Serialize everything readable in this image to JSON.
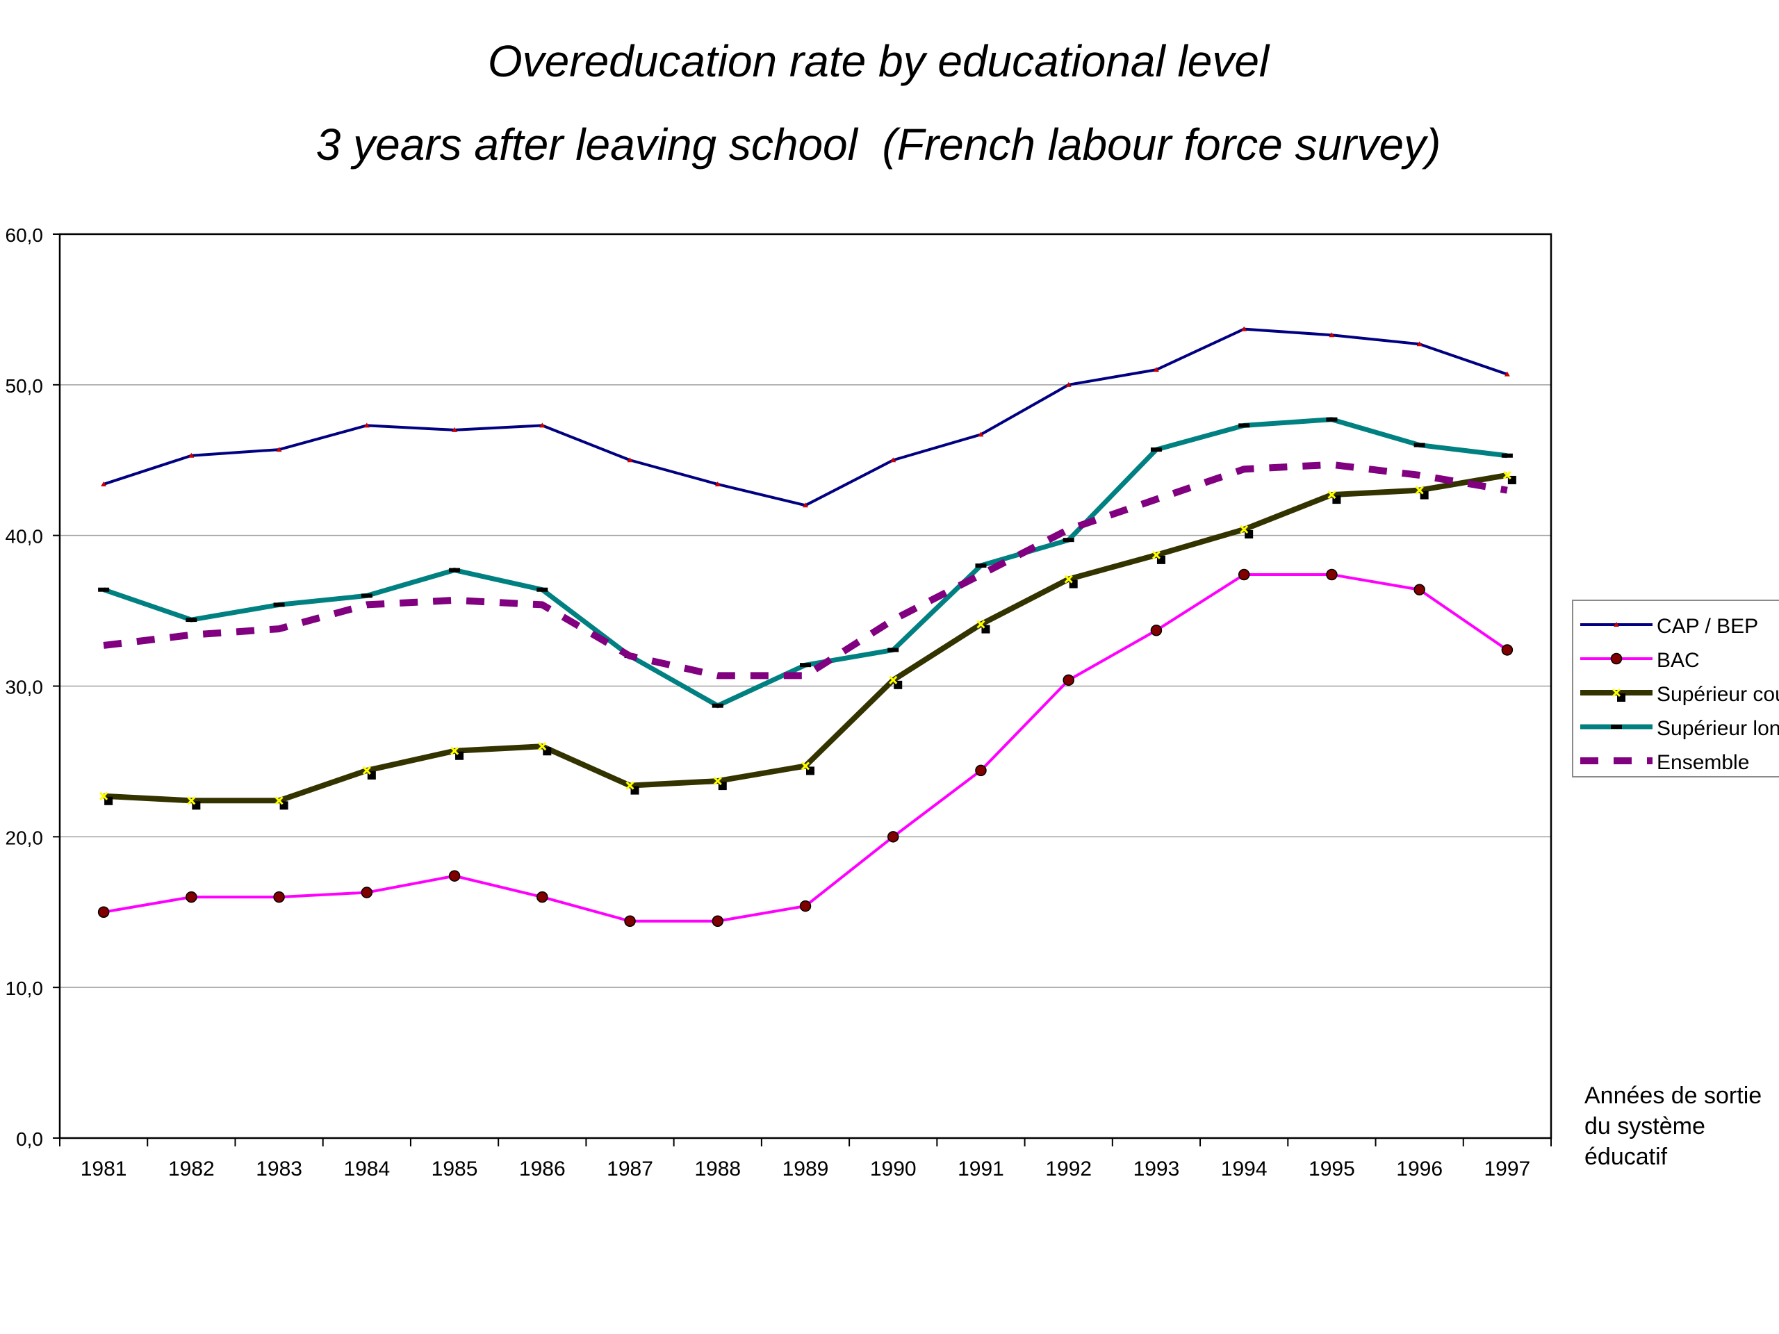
{
  "chart_data": {
    "type": "line",
    "title": "Overeducation rate by educational level",
    "subtitle": "3 years after leaving school  (French labour force survey)",
    "xlabel": [
      "Années de sortie",
      "du système",
      "éducatif"
    ],
    "ylabel": "",
    "ylim": [
      0,
      60
    ],
    "yticks": [
      "0,0",
      "10,0",
      "20,0",
      "30,0",
      "40,0",
      "50,0",
      "60,0"
    ],
    "grid": true,
    "legend_position": "right",
    "x": [
      "1981",
      "1982",
      "1983",
      "1984",
      "1985",
      "1986",
      "1987",
      "1988",
      "1989",
      "1990",
      "1991",
      "1992",
      "1993",
      "1994",
      "1995",
      "1996",
      "1997"
    ],
    "series": [
      {
        "name": "CAP / BEP",
        "color": "#000080",
        "marker": "triangle",
        "style": "solid",
        "values": [
          43.4,
          45.3,
          45.7,
          47.3,
          47.0,
          47.3,
          45.0,
          43.4,
          42.0,
          45.0,
          46.7,
          50.0,
          51.0,
          53.7,
          53.3,
          52.7,
          50.7
        ]
      },
      {
        "name": "BAC",
        "color": "#ff00ff",
        "marker": "circle",
        "style": "solid",
        "values": [
          15.0,
          16.0,
          16.0,
          16.3,
          17.4,
          16.0,
          14.4,
          14.4,
          15.4,
          20.0,
          24.4,
          30.4,
          33.7,
          37.4,
          37.4,
          36.4,
          32.4
        ]
      },
      {
        "name": "Supérieur court",
        "color": "#333300",
        "marker": "x",
        "style": "solid",
        "values": [
          22.7,
          22.4,
          22.4,
          24.4,
          25.7,
          26.0,
          23.4,
          23.7,
          24.7,
          30.4,
          34.1,
          37.1,
          38.7,
          40.4,
          42.7,
          43.0,
          44.0
        ]
      },
      {
        "name": "Supérieur long",
        "color": "#008080",
        "marker": "bar",
        "style": "solid",
        "values": [
          36.4,
          34.4,
          35.4,
          36.0,
          37.7,
          36.4,
          32.0,
          28.7,
          31.4,
          32.4,
          38.0,
          39.7,
          45.7,
          47.3,
          47.7,
          46.0,
          45.3
        ]
      },
      {
        "name": "Ensemble",
        "color": "#800080",
        "marker": "none",
        "style": "dashed",
        "values": [
          32.7,
          33.4,
          33.8,
          35.4,
          35.7,
          35.4,
          32.0,
          30.7,
          30.7,
          34.4,
          37.4,
          40.4,
          42.4,
          44.4,
          44.7,
          44.0,
          43.0
        ]
      }
    ]
  }
}
